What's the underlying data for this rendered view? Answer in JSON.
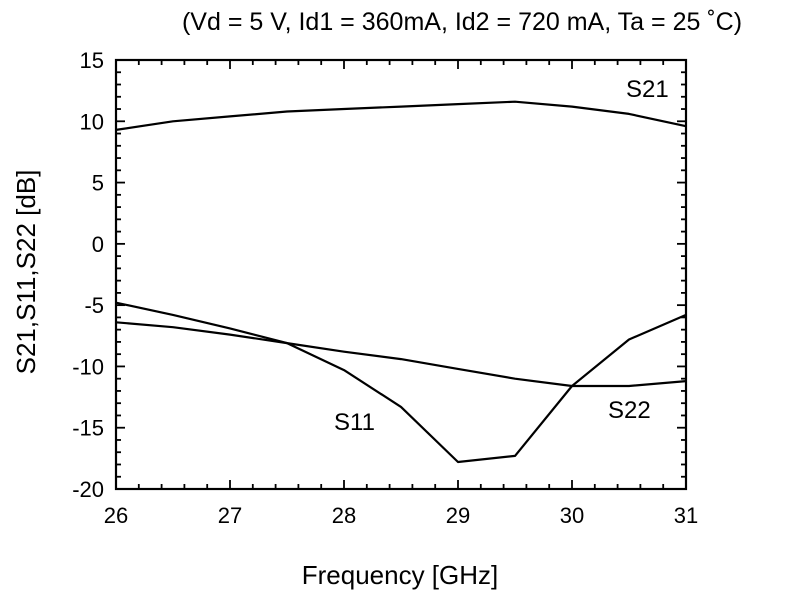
{
  "chart_data": {
    "type": "line",
    "title": "(Vd = 5 V, Id1 = 360mA, Id2 = 720 mA, Ta = 25 ˚C)",
    "xlabel": "Frequency [GHz]",
    "ylabel": "S21,S11,S22 [dB]",
    "xlim": [
      26,
      31
    ],
    "ylim": [
      -20,
      15
    ],
    "x_ticks": [
      26,
      27,
      28,
      29,
      30,
      31
    ],
    "y_ticks": [
      -20,
      -15,
      -10,
      -5,
      0,
      5,
      10,
      15
    ],
    "x_tick_labels": [
      "26",
      "27",
      "28",
      "29",
      "30",
      "31"
    ],
    "y_tick_labels": [
      "-20",
      "-15",
      "-10",
      "-5",
      "0",
      "5",
      "10",
      "15"
    ],
    "grid": false,
    "x": [
      26,
      26.5,
      27,
      27.5,
      28,
      28.5,
      29,
      29.5,
      30,
      30.5,
      31
    ],
    "series": [
      {
        "name": "S21",
        "values": [
          9.3,
          10.0,
          10.4,
          10.8,
          11.0,
          11.2,
          11.4,
          11.6,
          11.2,
          10.6,
          9.6
        ]
      },
      {
        "name": "S11",
        "values": [
          -4.8,
          -5.8,
          -6.9,
          -8.1,
          -10.3,
          -13.3,
          -17.8,
          -17.3,
          -11.6,
          -7.8,
          -5.8
        ]
      },
      {
        "name": "S22",
        "values": [
          -6.4,
          -6.8,
          -7.4,
          -8.1,
          -8.8,
          -9.4,
          -10.2,
          -11.0,
          -11.6,
          -11.6,
          -11.2
        ]
      }
    ],
    "series_labels": [
      {
        "text": "S21"
      },
      {
        "text": "S11"
      },
      {
        "text": "S22"
      }
    ],
    "line_color": "#000000"
  }
}
